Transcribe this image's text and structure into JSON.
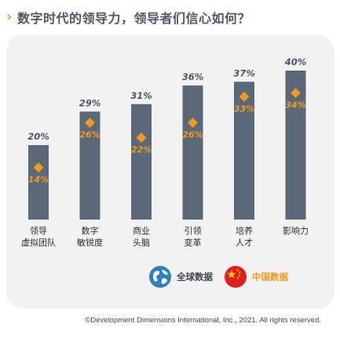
{
  "title": "数字时代的领导力，领导者们信心如何？",
  "title_icon": "chevron-right-icon",
  "colors": {
    "bar": "#5a6877",
    "marker": "#f39a1e",
    "panel": "#f2f2f2",
    "title": "#4a5866",
    "legend_china": "#f39a1e"
  },
  "chart_data": {
    "type": "bar",
    "categories": [
      [
        "领导",
        "虚拟团队"
      ],
      [
        "数字",
        "敏锐度"
      ],
      [
        "商业",
        "头脑"
      ],
      [
        "引领",
        "变革"
      ],
      [
        "培养",
        "人才"
      ],
      [
        "影响力"
      ]
    ],
    "series": [
      {
        "name": "全球数据",
        "values": [
          20,
          29,
          31,
          36,
          37,
          40
        ],
        "labels": [
          "20%",
          "29%",
          "31%",
          "36%",
          "37%",
          "40%"
        ]
      },
      {
        "name": "中国数据",
        "values": [
          14,
          26,
          22,
          26,
          33,
          34
        ],
        "labels": [
          "14%",
          "26%",
          "22%",
          "26%",
          "33%",
          "34%"
        ]
      }
    ],
    "ylim": [
      0,
      40
    ],
    "grid": false
  },
  "legend": {
    "global": {
      "label": "全球数据",
      "icon": "globe-icon"
    },
    "china": {
      "label": "中国数据",
      "icon": "china-flag-icon"
    }
  },
  "footer": "©Development Dimensions International, Inc., 2021. All rights reserved."
}
